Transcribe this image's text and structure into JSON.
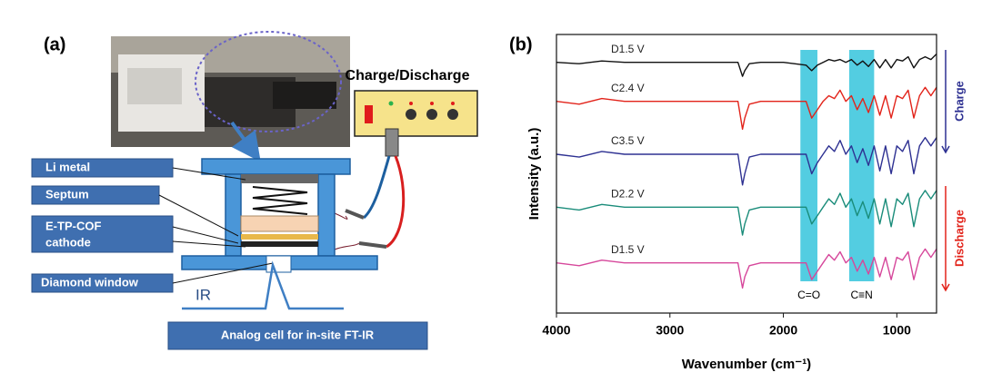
{
  "diagram": {
    "panel_label": "(a)",
    "power_label": "Charge/Discharge",
    "parts": [
      "Li metal",
      "Septum",
      [
        "E-TP-COF",
        "cathode"
      ],
      "Diamond window"
    ],
    "beam_label": "IR",
    "caption": "Analog cell for in-site FT-IR"
  },
  "chart_data": {
    "type": "line",
    "panel_label": "(b)",
    "x_label": "Wavenumber (cm⁻¹)",
    "y_label": "Intensity (a.u.)",
    "xlim": [
      4000,
      650
    ],
    "xticks": [
      4000,
      3000,
      2000,
      1000
    ],
    "ylim": [
      0,
      100
    ],
    "x": [
      4000,
      3800,
      3600,
      3400,
      3200,
      3000,
      2800,
      2600,
      2400,
      2360,
      2340,
      2300,
      2200,
      2000,
      1800,
      1750,
      1700,
      1650,
      1600,
      1550,
      1500,
      1450,
      1400,
      1350,
      1300,
      1250,
      1200,
      1150,
      1100,
      1050,
      1000,
      950,
      900,
      850,
      800,
      750,
      700,
      650
    ],
    "series": [
      {
        "name": "D1.5 V",
        "color": "#111111",
        "values": [
          90,
          89.5,
          90.5,
          90,
          90,
          90,
          90,
          90,
          90,
          85,
          87,
          89.5,
          90,
          90,
          89,
          87,
          89,
          90,
          91,
          90.5,
          91,
          90,
          91,
          89,
          90.5,
          88.5,
          91,
          88,
          91,
          88,
          91,
          90.5,
          92,
          88,
          91,
          92,
          91,
          93
        ]
      },
      {
        "name": "C2.4 V",
        "color": "#e2231a",
        "values": [
          76,
          75,
          77,
          76,
          76,
          76,
          76,
          76,
          76,
          66,
          70,
          75,
          76,
          76,
          76,
          70,
          73,
          76,
          78,
          77,
          80,
          76,
          78,
          73,
          77,
          72,
          78,
          71,
          78,
          70,
          78,
          77,
          80,
          70,
          78,
          81,
          78,
          81
        ]
      },
      {
        "name": "C3.5 V",
        "color": "#2e3192",
        "values": [
          57,
          56,
          58,
          57,
          57,
          57,
          57,
          57,
          57,
          46,
          50,
          56,
          57,
          57,
          57,
          50,
          54,
          57,
          60,
          58,
          62,
          57,
          60,
          54,
          59,
          53,
          60,
          51,
          60,
          50,
          60,
          58,
          62,
          50,
          60,
          63,
          60,
          63
        ]
      },
      {
        "name": "D2.2 V",
        "color": "#1a8c7a",
        "values": [
          38,
          37,
          39,
          38,
          38,
          38,
          38,
          38,
          38,
          28,
          32,
          37,
          38,
          38,
          38,
          32,
          35,
          38,
          41,
          39,
          43,
          38,
          41,
          35,
          40,
          34,
          41,
          32,
          41,
          31,
          41,
          39,
          43,
          31,
          41,
          44,
          41,
          44
        ]
      },
      {
        "name": "D1.5 V",
        "color": "#d6479b",
        "values": [
          18,
          17,
          19,
          18,
          18,
          18,
          18,
          18,
          18,
          9,
          13,
          17,
          18,
          18,
          18,
          12,
          15,
          18,
          21,
          19,
          22,
          18,
          20,
          15,
          19,
          14,
          20,
          13,
          20,
          12,
          20,
          19,
          22,
          12,
          20,
          23,
          20,
          23
        ]
      }
    ],
    "bands": [
      {
        "from": 1850,
        "to": 1700,
        "label": "C=O"
      },
      {
        "from": 1420,
        "to": 1200,
        "label": "C≡N"
      }
    ],
    "band_color": "#35c4dc",
    "arrows": [
      {
        "label": "Charge",
        "color": "#2e3192"
      },
      {
        "label": "Discharge",
        "color": "#e2231a"
      }
    ]
  }
}
